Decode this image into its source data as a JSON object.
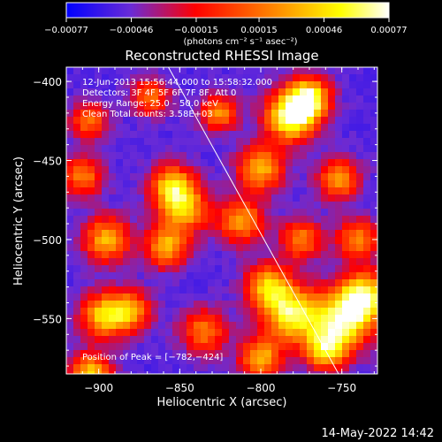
{
  "chart_data": {
    "type": "heatmap",
    "title": "Reconstructed RHESSI Image",
    "xlabel": "Heliocentric X (arcsec)",
    "ylabel": "Heliocentric Y (arcsec)",
    "xlim": [
      -920,
      -728
    ],
    "ylim": [
      -585,
      -391
    ],
    "xticks": [
      {
        "value": -900,
        "label": "−900"
      },
      {
        "value": -850,
        "label": "−850"
      },
      {
        "value": -800,
        "label": "−800"
      },
      {
        "value": -750,
        "label": "−750"
      }
    ],
    "yticks": [
      {
        "value": -400,
        "label": "−400"
      },
      {
        "value": -450,
        "label": "−450"
      },
      {
        "value": -500,
        "label": "−500"
      },
      {
        "value": -550,
        "label": "−550"
      }
    ],
    "colorbar": {
      "range": [
        -0.00077,
        0.00077
      ],
      "tick_values": [
        -0.00077,
        -0.00046,
        -0.00015,
        0.00015,
        0.00046,
        0.00077
      ],
      "tick_labels": [
        "−0.00077",
        "−0.00046",
        "−0.00015",
        "0.00015",
        "0.00046",
        "0.00077"
      ],
      "unit_label": "(photons cm⁻² s⁻¹ asec⁻²)",
      "colors": [
        "#0000ff",
        "#6a2bd6",
        "#ff0000",
        "#ff8a00",
        "#ffff00",
        "#ffffff"
      ]
    },
    "annotations": [
      "12‑Jun‑2013 15:56:44.000 to 15:58:32.000",
      "Detectors: 3F 4F 5F 6F 7F 8F, Att 0",
      "Energy Range: 25.0 – 50.0 keV",
      "Clean    Total counts: 3.58E+03"
    ],
    "peak_label": "Position of Peak = [−782,−424]",
    "peak": {
      "x": -782,
      "y": -424
    },
    "limb_line": {
      "x": [
        -857,
        -752
      ],
      "y": [
        -391,
        -585
      ]
    },
    "sources": [
      {
        "x": -781,
        "y": -422,
        "value": 0.00077,
        "size": 11
      },
      {
        "x": -770,
        "y": -410,
        "value": 0.0005,
        "size": 9
      },
      {
        "x": -748,
        "y": -550,
        "value": 0.00062,
        "size": 13
      },
      {
        "x": -736,
        "y": -535,
        "value": 0.0005,
        "size": 10
      },
      {
        "x": -780,
        "y": -548,
        "value": 0.00058,
        "size": 12
      },
      {
        "x": -795,
        "y": -530,
        "value": 0.0004,
        "size": 10
      },
      {
        "x": -800,
        "y": -575,
        "value": 0.00035,
        "size": 9
      },
      {
        "x": -760,
        "y": -570,
        "value": 0.00042,
        "size": 9
      },
      {
        "x": -848,
        "y": -480,
        "value": 0.0004,
        "size": 11
      },
      {
        "x": -855,
        "y": -465,
        "value": 0.0003,
        "size": 9
      },
      {
        "x": -858,
        "y": -505,
        "value": 0.00032,
        "size": 9
      },
      {
        "x": -895,
        "y": -500,
        "value": 0.00035,
        "size": 10
      },
      {
        "x": -897,
        "y": -548,
        "value": 0.0004,
        "size": 10
      },
      {
        "x": -905,
        "y": -585,
        "value": 0.00045,
        "size": 9
      },
      {
        "x": -880,
        "y": -545,
        "value": 0.00025,
        "size": 9
      },
      {
        "x": -800,
        "y": -455,
        "value": 0.00035,
        "size": 10
      },
      {
        "x": -812,
        "y": -488,
        "value": 0.00028,
        "size": 10
      },
      {
        "x": -826,
        "y": -420,
        "value": 0.00025,
        "size": 8
      },
      {
        "x": -752,
        "y": -462,
        "value": 0.00026,
        "size": 9
      },
      {
        "x": -740,
        "y": -500,
        "value": 0.00024,
        "size": 9
      },
      {
        "x": -910,
        "y": -460,
        "value": 0.0002,
        "size": 9
      },
      {
        "x": -868,
        "y": -410,
        "value": 0.00015,
        "size": 8
      },
      {
        "x": -835,
        "y": -558,
        "value": 0.00018,
        "size": 10
      },
      {
        "x": -775,
        "y": -500,
        "value": 0.0002,
        "size": 9
      },
      {
        "x": -906,
        "y": -425,
        "value": 0.00015,
        "size": 8
      }
    ]
  },
  "footer": {
    "timestamp": "14‑May‑2022 14:42"
  }
}
